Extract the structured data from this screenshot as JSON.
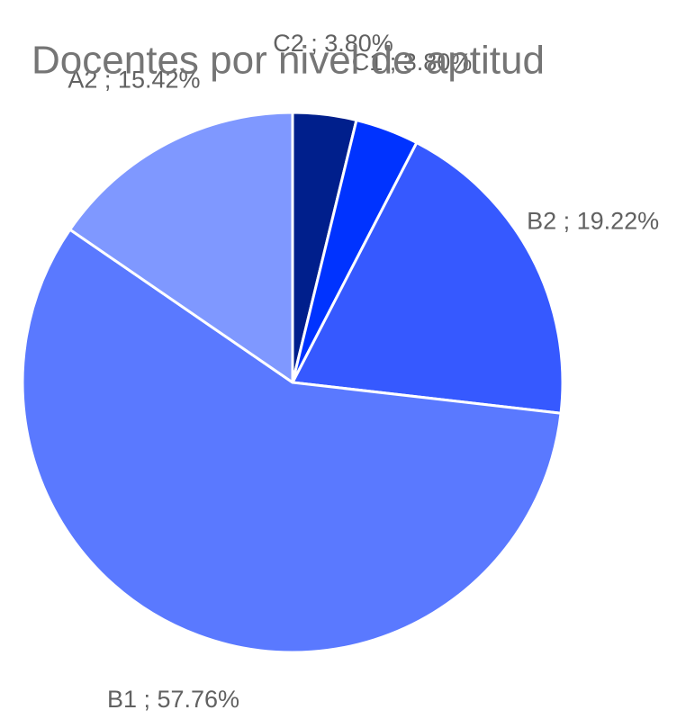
{
  "chart_data": {
    "type": "pie",
    "title": "Docentes por nivel de aptitud",
    "values": [
      3.8,
      3.8,
      19.22,
      57.76,
      15.42
    ],
    "value_labels": [
      "C2 ; 3.80%",
      "C1 ; 3.80%",
      "B2 ; 19.22%",
      "B1 ; 57.76%",
      "A2 ; 15.42%"
    ],
    "colors": [
      "#001f8c",
      "#0033ff",
      "#3659ff",
      "#5a79ff",
      "#7f98ff"
    ]
  }
}
